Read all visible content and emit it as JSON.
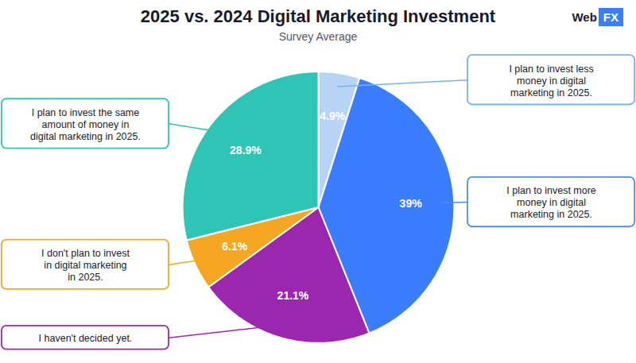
{
  "chart_data": {
    "type": "pie",
    "title": "2025 vs. 2024 Digital Marketing Investment",
    "subtitle": "Survey Average",
    "values": [
      4.9,
      39.0,
      21.1,
      6.1,
      28.9
    ],
    "value_labels": [
      "4.9%",
      "39%",
      "21.1%",
      "6.1%",
      "28.9%"
    ],
    "colors": [
      "#b8d4f5",
      "#3a7eff",
      "#9b27af",
      "#f5a623",
      "#2ec4b6"
    ],
    "data_labels": true,
    "annotations": [
      {
        "text": "I plan to invest less\nmoney in digital\nmarketing in 2025.",
        "color": "#74b3f5"
      },
      {
        "text": "I plan to invest more\nmoney in digital\nmarketing in 2025.",
        "color": "#4a8eff"
      },
      {
        "text": "I haven't decided yet.",
        "color": "#9b27af"
      },
      {
        "text": "I don't plan to invest\nin digital marketing\nin 2025.",
        "color": "#f5a623"
      },
      {
        "text": "I plan to invest the same\namount of money in\ndigital marketing in 2025.",
        "color": "#2ec4b6"
      }
    ],
    "logo": {
      "text": [
        "Web",
        "FX"
      ],
      "color": "#3a7eff"
    }
  }
}
